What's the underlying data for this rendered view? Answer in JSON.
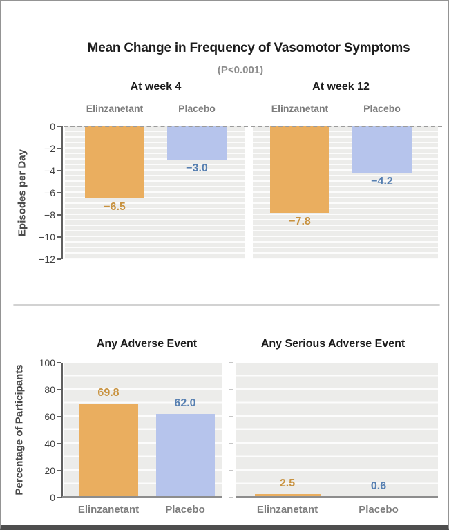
{
  "figure": {
    "colors": {
      "elinzanetant_bar": "#EAAE5F",
      "placebo_bar": "#B6C4EC",
      "elinzanetant_label": "#C8923F",
      "placebo_label": "#567FB1"
    }
  },
  "chart_data": [
    {
      "type": "bar",
      "title": "Mean Change in Frequency of Vasomotor Symptoms",
      "subtitle": "(P<0.001)",
      "ylabel": "Episodes per Day",
      "ylim": [
        -12,
        0
      ],
      "yticks": [
        0,
        -2,
        -4,
        -6,
        -8,
        -10,
        -12
      ],
      "ytick_labels": [
        "0",
        "−2",
        "−4",
        "−6",
        "−8",
        "−10",
        "−12"
      ],
      "grid": true,
      "legend_position": "none",
      "zero_line": "dashed",
      "panels": [
        {
          "label": "At week 4",
          "categories": [
            "Elinzanetant",
            "Placebo"
          ],
          "values": [
            -6.5,
            -3.0
          ],
          "value_labels": [
            "−6.5",
            "−3.0"
          ]
        },
        {
          "label": "At week 12",
          "categories": [
            "Elinzanetant",
            "Placebo"
          ],
          "values": [
            -7.8,
            -4.2
          ],
          "value_labels": [
            "−7.8",
            "−4.2"
          ]
        }
      ]
    },
    {
      "type": "bar",
      "title": "",
      "subtitle": "",
      "ylabel": "Percentage of Participants",
      "ylim": [
        0,
        100
      ],
      "yticks": [
        0,
        20,
        40,
        60,
        80,
        100
      ],
      "ytick_labels": [
        "0",
        "20",
        "40",
        "60",
        "80",
        "100"
      ],
      "grid": true,
      "legend_position": "none",
      "panels": [
        {
          "label": "Any Adverse Event",
          "categories": [
            "Elinzanetant",
            "Placebo"
          ],
          "values": [
            69.8,
            62.0
          ],
          "value_labels": [
            "69.8",
            "62.0"
          ]
        },
        {
          "label": "Any Serious Adverse Event",
          "categories": [
            "Elinzanetant",
            "Placebo"
          ],
          "values": [
            2.5,
            0.6
          ],
          "value_labels": [
            "2.5",
            "0.6"
          ]
        }
      ]
    }
  ]
}
